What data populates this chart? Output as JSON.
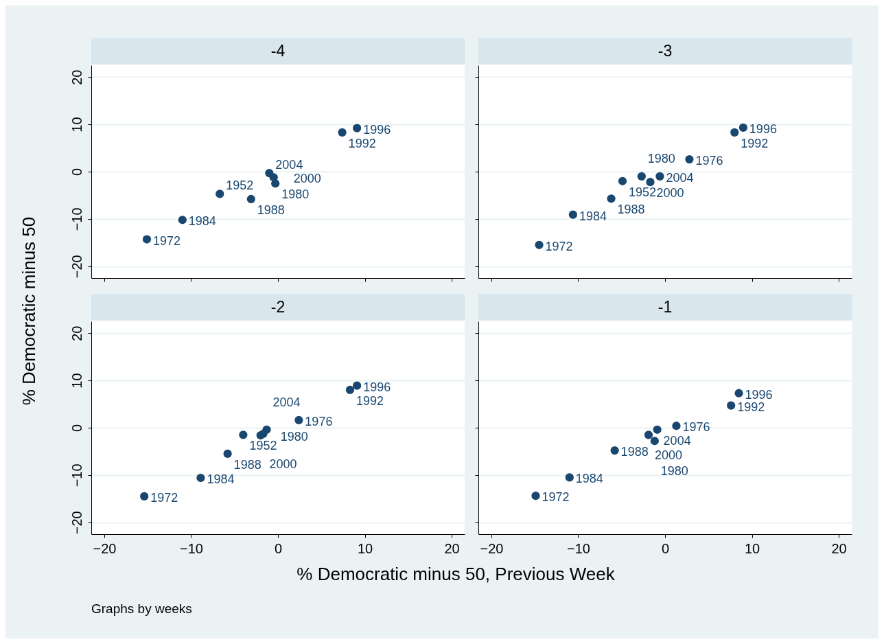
{
  "chart_data": [
    {
      "type": "scatter",
      "title": "-4",
      "ylabel": "% Democratic minus 50",
      "color": "#1a476f",
      "marker": "circle",
      "grid": "y",
      "tick_labels": "y",
      "xlim": [
        -21.5,
        21.5
      ],
      "ylim": [
        -22.5,
        22.5
      ],
      "xticks": [
        -20,
        -10,
        0,
        10,
        20
      ],
      "yticks": [
        -20,
        -10,
        0,
        10,
        20
      ],
      "x": [
        9.1,
        7.4,
        -1.0,
        -0.5,
        -0.3,
        -6.7,
        -3.1,
        -11.0,
        -15.1
      ],
      "values": [
        9.2,
        8.3,
        -0.3,
        -1.2,
        -2.5,
        -4.7,
        -5.8,
        -10.2,
        -14.3
      ],
      "annotations": [
        {
          "text": "1996",
          "x": 9.1,
          "y": 9.2
        },
        {
          "text": "1992",
          "x": 7.4,
          "y": 8.3
        },
        {
          "text": "2004",
          "x": -1.0,
          "y": -0.3
        },
        {
          "text": "2000",
          "x": -0.5,
          "y": -1.2
        },
        {
          "text": "1980",
          "x": -0.3,
          "y": -2.5
        },
        {
          "text": "1952",
          "x": -6.7,
          "y": -4.7
        },
        {
          "text": "1988",
          "x": -3.1,
          "y": -5.8
        },
        {
          "text": "1984",
          "x": -11.0,
          "y": -10.2
        },
        {
          "text": "1972",
          "x": -15.1,
          "y": -14.3
        }
      ]
    },
    {
      "type": "scatter",
      "title": "-3",
      "color": "#1a476f",
      "marker": "circle",
      "grid": "y",
      "tick_labels": false,
      "xlim": [
        -21.5,
        21.5
      ],
      "ylim": [
        -22.5,
        22.5
      ],
      "xticks": [
        -20,
        -10,
        0,
        10,
        20
      ],
      "yticks": [
        -20,
        -10,
        0,
        10,
        20
      ],
      "x": [
        9.0,
        8.0,
        2.8,
        -4.9,
        -2.7,
        -1.7,
        -0.6,
        -6.2,
        -10.6,
        -14.5
      ],
      "values": [
        9.3,
        8.3,
        2.6,
        -2.0,
        -1.0,
        -2.2,
        -1.0,
        -5.7,
        -9.1,
        -15.5
      ],
      "annotations": [
        {
          "text": "1996",
          "x": 9.0,
          "y": 9.3
        },
        {
          "text": "1992",
          "x": 8.0,
          "y": 8.3
        },
        {
          "text": "1976",
          "x": 2.8,
          "y": 2.6
        },
        {
          "text": "1952",
          "x": -4.9,
          "y": -2.0
        },
        {
          "text": "1980",
          "x": -2.7,
          "y": -1.0
        },
        {
          "text": "2000",
          "x": -1.7,
          "y": -2.2
        },
        {
          "text": "2004",
          "x": -0.6,
          "y": -1.0
        },
        {
          "text": "1988",
          "x": -6.2,
          "y": -5.7
        },
        {
          "text": "1984",
          "x": -10.6,
          "y": -9.1
        },
        {
          "text": "1972",
          "x": -14.5,
          "y": -15.5
        }
      ]
    },
    {
      "type": "scatter",
      "title": "-2",
      "xlabel": "% Democratic minus 50, Previous Week",
      "color": "#1a476f",
      "marker": "circle",
      "grid": "y",
      "xlim": [
        -21.5,
        21.5
      ],
      "ylim": [
        -22.5,
        22.5
      ],
      "xticks": [
        -20,
        -10,
        0,
        10,
        20
      ],
      "yticks": [
        -20,
        -10,
        0,
        10,
        20
      ],
      "x": [
        9.1,
        8.3,
        2.4,
        -4.0,
        -2.0,
        -1.7,
        -1.3,
        -5.8,
        -8.9,
        -15.4
      ],
      "values": [
        8.9,
        8.0,
        1.6,
        -1.5,
        -1.6,
        -1.3,
        -0.4,
        -5.5,
        -10.6,
        -14.5
      ],
      "annotations": [
        "Graphs by weeks",
        {
          "text": "1996",
          "x": 9.1,
          "y": 8.9
        },
        {
          "text": "1992",
          "x": 8.3,
          "y": 8.0
        },
        {
          "text": "1976",
          "x": 2.4,
          "y": 1.6
        },
        {
          "text": "1952",
          "x": -4.0,
          "y": -1.5
        },
        {
          "text": "1980",
          "x": -2.0,
          "y": -1.6
        },
        {
          "text": "2000",
          "x": -1.7,
          "y": -1.3
        },
        {
          "text": "2004",
          "x": -1.3,
          "y": -0.4
        },
        {
          "text": "1988",
          "x": -5.8,
          "y": -5.5
        },
        {
          "text": "1984",
          "x": -8.9,
          "y": -10.6
        },
        {
          "text": "1972",
          "x": -15.4,
          "y": -14.5
        }
      ]
    },
    {
      "type": "scatter",
      "title": "-1",
      "color": "#1a476f",
      "marker": "circle",
      "grid": "y",
      "tick_labels": "x",
      "xlim": [
        -21.5,
        21.5
      ],
      "ylim": [
        -22.5,
        22.5
      ],
      "xticks": [
        -20,
        -10,
        0,
        10,
        20
      ],
      "yticks": [
        -20,
        -10,
        0,
        10,
        20
      ],
      "x": [
        8.5,
        7.6,
        1.3,
        -0.9,
        -1.9,
        -1.2,
        -5.8,
        -11.0,
        -14.9
      ],
      "values": [
        7.3,
        4.7,
        0.4,
        -0.4,
        -1.5,
        -2.8,
        -4.8,
        -10.5,
        -14.4
      ],
      "annotations": [
        {
          "text": "1996",
          "x": 8.5,
          "y": 7.3
        },
        {
          "text": "1992",
          "x": 7.6,
          "y": 4.7
        },
        {
          "text": "1976",
          "x": 1.3,
          "y": 0.4
        },
        {
          "text": "2004",
          "x": -0.9,
          "y": -0.4
        },
        {
          "text": "2000",
          "x": -1.9,
          "y": -1.5
        },
        {
          "text": "1980",
          "x": -1.2,
          "y": -2.8
        },
        {
          "text": "1988",
          "x": -5.8,
          "y": -4.8
        },
        {
          "text": "1984",
          "x": -11.0,
          "y": -10.5
        },
        {
          "text": "1972",
          "x": -14.9,
          "y": -14.4
        }
      ]
    }
  ]
}
